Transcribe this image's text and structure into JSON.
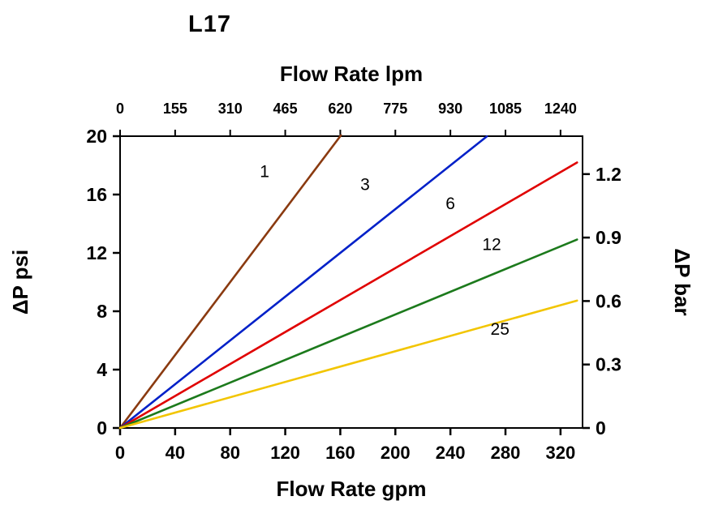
{
  "title": "L17",
  "chart_data": {
    "type": "line",
    "title": "L17",
    "grid": false,
    "legend": "inline-labels",
    "top_axis": {
      "label": "Flow Rate lpm",
      "ticks": [
        0,
        155,
        310,
        465,
        620,
        775,
        930,
        1085,
        1240
      ],
      "max": 1302
    },
    "bottom_axis": {
      "label": "Flow Rate gpm",
      "ticks": [
        0,
        40,
        80,
        120,
        160,
        200,
        240,
        280,
        320
      ],
      "max": 336
    },
    "left_axis": {
      "label": "ΔP psi",
      "ticks": [
        0,
        4,
        8,
        12,
        16,
        20
      ],
      "max": 20
    },
    "right_axis": {
      "label": "ΔP bar",
      "ticks": [
        0,
        0.3,
        0.6,
        0.9,
        1.2
      ],
      "tick_labels": [
        "0",
        "0.3",
        "0.6",
        "0.9",
        "1.2"
      ],
      "psi_per_bar": 14.5
    },
    "series": [
      {
        "name": "1",
        "color": "#8a3a10",
        "slope_psi_per_gpm": 0.125,
        "x_end_gpm": 160.5,
        "label_at": {
          "gpm": 105,
          "psi": 17.2
        }
      },
      {
        "name": "3",
        "color": "#0020c8",
        "slope_psi_per_gpm": 0.075,
        "x_end_gpm": 266.5,
        "label_at": {
          "gpm": 178,
          "psi": 16.3
        }
      },
      {
        "name": "6",
        "color": "#e00000",
        "slope_psi_per_gpm": 0.0548,
        "x_end_gpm": 332,
        "label_at": {
          "gpm": 240,
          "psi": 15.0
        }
      },
      {
        "name": "12",
        "color": "#1c7a1c",
        "slope_psi_per_gpm": 0.0389,
        "x_end_gpm": 332,
        "label_at": {
          "gpm": 270,
          "psi": 12.2
        }
      },
      {
        "name": "25",
        "color": "#f2c500",
        "slope_psi_per_gpm": 0.0263,
        "x_end_gpm": 332,
        "label_at": {
          "gpm": 276,
          "psi": 6.4
        }
      }
    ]
  }
}
